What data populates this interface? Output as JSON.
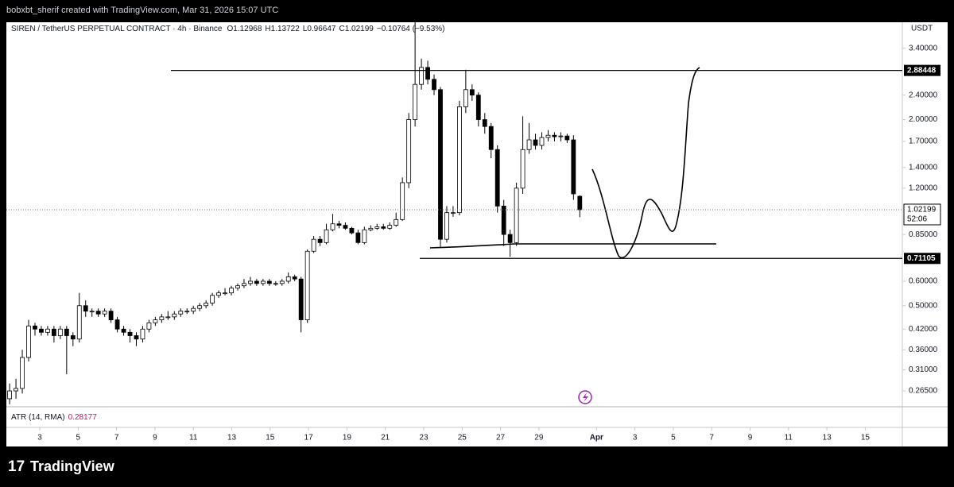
{
  "watermark": "bobxbt_sherif created with TradingView.com, Mar 31, 2026 15:07 UTC",
  "brand": "TradingView",
  "chart_data": {
    "type": "candlestick",
    "symbol": "SIREN / TetherUS PERPETUAL CONTRACT · 4h · Binance",
    "ohlc_legend": [
      "O1.12968",
      "H1.13722",
      "L0.96647",
      "C1.02199",
      "−0.10764 (−9.53%)"
    ],
    "currency": "USDT",
    "log_scale": true,
    "up_color": "#ffffff",
    "down_color": "#000000",
    "outline_color": "#000000",
    "x": [
      0.43,
      0.76,
      1.09,
      1.42,
      1.75,
      2.08,
      2.41,
      2.74,
      3.07,
      3.4,
      3.73,
      4.06,
      4.39,
      4.72,
      5.05,
      5.38,
      5.71,
      6.04,
      6.37,
      6.7,
      7.03,
      7.36,
      7.69,
      8.02,
      8.35,
      8.68,
      9.01,
      9.34,
      9.67,
      10.0,
      10.33,
      10.66,
      10.99,
      11.32,
      11.65,
      11.98,
      12.31,
      12.64,
      12.97,
      13.3,
      13.63,
      13.96,
      14.29,
      14.62,
      14.95,
      15.28,
      15.61,
      15.94,
      16.27,
      16.6,
      16.93,
      17.26,
      17.59,
      17.92,
      18.25,
      18.58,
      18.91,
      19.24,
      19.57,
      19.9,
      20.23,
      20.56,
      20.89,
      21.22,
      21.55,
      21.88,
      22.21,
      22.54,
      22.87,
      23.2,
      23.53,
      23.86,
      24.19,
      24.52,
      24.85,
      25.18,
      25.51,
      25.84,
      26.17,
      26.5,
      26.83,
      27.16,
      27.49,
      27.82,
      28.15,
      28.48,
      28.81,
      29.14,
      29.47,
      29.8,
      30.13
    ],
    "open": [
      0.25,
      0.265,
      0.27,
      0.34,
      0.43,
      0.42,
      0.41,
      0.42,
      0.4,
      0.42,
      0.4,
      0.39,
      0.5,
      0.48,
      0.48,
      0.47,
      0.48,
      0.45,
      0.42,
      0.41,
      0.4,
      0.39,
      0.42,
      0.44,
      0.45,
      0.46,
      0.46,
      0.47,
      0.48,
      0.48,
      0.49,
      0.5,
      0.51,
      0.54,
      0.55,
      0.55,
      0.57,
      0.58,
      0.59,
      0.6,
      0.59,
      0.6,
      0.59,
      0.59,
      0.6,
      0.62,
      0.61,
      0.45,
      0.75,
      0.82,
      0.8,
      0.88,
      0.92,
      0.91,
      0.89,
      0.86,
      0.8,
      0.88,
      0.89,
      0.9,
      0.89,
      0.91,
      0.95,
      1.25,
      2.0,
      2.6,
      2.95,
      2.7,
      2.5,
      0.82,
      1.0,
      1.0,
      2.2,
      2.5,
      2.4,
      2.0,
      1.9,
      1.6,
      1.05,
      0.85,
      0.8,
      1.2,
      1.6,
      1.72,
      1.65,
      1.75,
      1.78,
      1.76,
      1.77,
      1.72,
      1.12968
    ],
    "high": [
      0.28,
      0.29,
      0.36,
      0.45,
      0.44,
      0.43,
      0.43,
      0.43,
      0.43,
      0.43,
      0.41,
      0.55,
      0.52,
      0.49,
      0.49,
      0.49,
      0.49,
      0.46,
      0.43,
      0.42,
      0.41,
      0.43,
      0.45,
      0.46,
      0.47,
      0.48,
      0.48,
      0.49,
      0.49,
      0.5,
      0.51,
      0.52,
      0.55,
      0.56,
      0.57,
      0.58,
      0.59,
      0.61,
      0.62,
      0.61,
      0.61,
      0.61,
      0.6,
      0.61,
      0.64,
      0.63,
      0.62,
      0.76,
      0.84,
      0.84,
      0.92,
      0.99,
      0.94,
      0.93,
      0.9,
      0.88,
      0.9,
      0.91,
      0.92,
      0.92,
      0.93,
      1.0,
      1.3,
      2.1,
      4.3,
      3.15,
      3.1,
      2.8,
      2.55,
      1.05,
      1.05,
      2.3,
      2.9,
      2.6,
      2.45,
      2.1,
      1.95,
      1.65,
      1.1,
      0.88,
      1.25,
      2.05,
      1.95,
      1.8,
      1.82,
      1.85,
      1.82,
      1.82,
      1.8,
      1.78,
      1.13722
    ],
    "low": [
      0.24,
      0.25,
      0.26,
      0.33,
      0.4,
      0.4,
      0.4,
      0.38,
      0.39,
      0.3,
      0.37,
      0.38,
      0.46,
      0.46,
      0.46,
      0.46,
      0.44,
      0.41,
      0.4,
      0.38,
      0.37,
      0.38,
      0.41,
      0.43,
      0.44,
      0.45,
      0.45,
      0.46,
      0.47,
      0.47,
      0.48,
      0.49,
      0.5,
      0.53,
      0.54,
      0.54,
      0.56,
      0.57,
      0.58,
      0.58,
      0.58,
      0.58,
      0.58,
      0.58,
      0.59,
      0.6,
      0.41,
      0.44,
      0.74,
      0.78,
      0.79,
      0.87,
      0.89,
      0.88,
      0.85,
      0.79,
      0.79,
      0.87,
      0.88,
      0.88,
      0.88,
      0.9,
      0.94,
      1.2,
      1.9,
      2.5,
      2.6,
      2.4,
      0.77,
      0.8,
      0.97,
      0.98,
      2.1,
      2.3,
      1.9,
      1.8,
      1.5,
      1.0,
      0.78,
      0.72,
      0.78,
      1.15,
      1.55,
      1.6,
      1.6,
      1.7,
      1.7,
      1.7,
      1.68,
      1.1,
      0.96647
    ],
    "close": [
      0.265,
      0.27,
      0.34,
      0.43,
      0.42,
      0.41,
      0.42,
      0.4,
      0.42,
      0.4,
      0.39,
      0.5,
      0.48,
      0.48,
      0.47,
      0.48,
      0.45,
      0.42,
      0.41,
      0.4,
      0.39,
      0.42,
      0.44,
      0.45,
      0.46,
      0.46,
      0.47,
      0.48,
      0.48,
      0.49,
      0.5,
      0.51,
      0.54,
      0.55,
      0.55,
      0.57,
      0.58,
      0.59,
      0.6,
      0.59,
      0.6,
      0.59,
      0.59,
      0.6,
      0.62,
      0.61,
      0.45,
      0.75,
      0.82,
      0.8,
      0.88,
      0.92,
      0.91,
      0.89,
      0.86,
      0.8,
      0.88,
      0.89,
      0.9,
      0.89,
      0.91,
      0.95,
      1.25,
      2.0,
      2.6,
      2.95,
      2.7,
      2.5,
      0.82,
      1.0,
      1.0,
      2.2,
      2.5,
      2.4,
      2.0,
      1.9,
      1.6,
      1.05,
      0.85,
      0.8,
      1.2,
      1.6,
      1.72,
      1.65,
      1.75,
      1.78,
      1.76,
      1.77,
      1.72,
      1.15,
      1.02199
    ],
    "xlim": [
      0.26,
      46.93
    ],
    "xticks": [
      {
        "value": 2,
        "label": "3"
      },
      {
        "value": 4,
        "label": "5"
      },
      {
        "value": 6,
        "label": "7"
      },
      {
        "value": 8,
        "label": "9"
      },
      {
        "value": 10,
        "label": "11"
      },
      {
        "value": 12,
        "label": "13"
      },
      {
        "value": 14,
        "label": "15"
      },
      {
        "value": 16,
        "label": "17"
      },
      {
        "value": 18,
        "label": "19"
      },
      {
        "value": 20,
        "label": "21"
      },
      {
        "value": 22,
        "label": "23"
      },
      {
        "value": 24,
        "label": "25"
      },
      {
        "value": 26,
        "label": "27"
      },
      {
        "value": 28,
        "label": "29"
      },
      {
        "value": 31,
        "label": "Apr"
      },
      {
        "value": 33,
        "label": "3"
      },
      {
        "value": 35,
        "label": "5"
      },
      {
        "value": 37,
        "label": "7"
      },
      {
        "value": 39,
        "label": "9"
      },
      {
        "value": 41,
        "label": "11"
      },
      {
        "value": 43,
        "label": "13"
      },
      {
        "value": 45,
        "label": "15"
      }
    ],
    "ylim": [
      0.2355,
      4.13
    ],
    "yticks": [
      {
        "value": 3.4,
        "label": "3.40000"
      },
      {
        "value": 2.4,
        "label": "2.40000"
      },
      {
        "value": 2.0,
        "label": "2.00000"
      },
      {
        "value": 1.7,
        "label": "1.70000"
      },
      {
        "value": 1.4,
        "label": "1.40000"
      },
      {
        "value": 1.2,
        "label": "1.20000"
      },
      {
        "value": 0.85,
        "label": "0.85000"
      },
      {
        "value": 0.6,
        "label": "0.60000"
      },
      {
        "value": 0.5,
        "label": "0.50000"
      },
      {
        "value": 0.42,
        "label": "0.42000"
      },
      {
        "value": 0.36,
        "label": "0.36000"
      },
      {
        "value": 0.31,
        "label": "0.31000"
      },
      {
        "value": 0.265,
        "label": "0.26500"
      }
    ],
    "levels": [
      {
        "value": 2.88448,
        "label": "2.88448"
      },
      {
        "value": 0.71105,
        "label": "0.71105"
      }
    ],
    "last_price": {
      "value": 1.02199,
      "label": "1.02199",
      "countdown": "52:06"
    },
    "indicator": {
      "name": "ATR (14, RMA)",
      "value_label": "0.28177"
    }
  }
}
